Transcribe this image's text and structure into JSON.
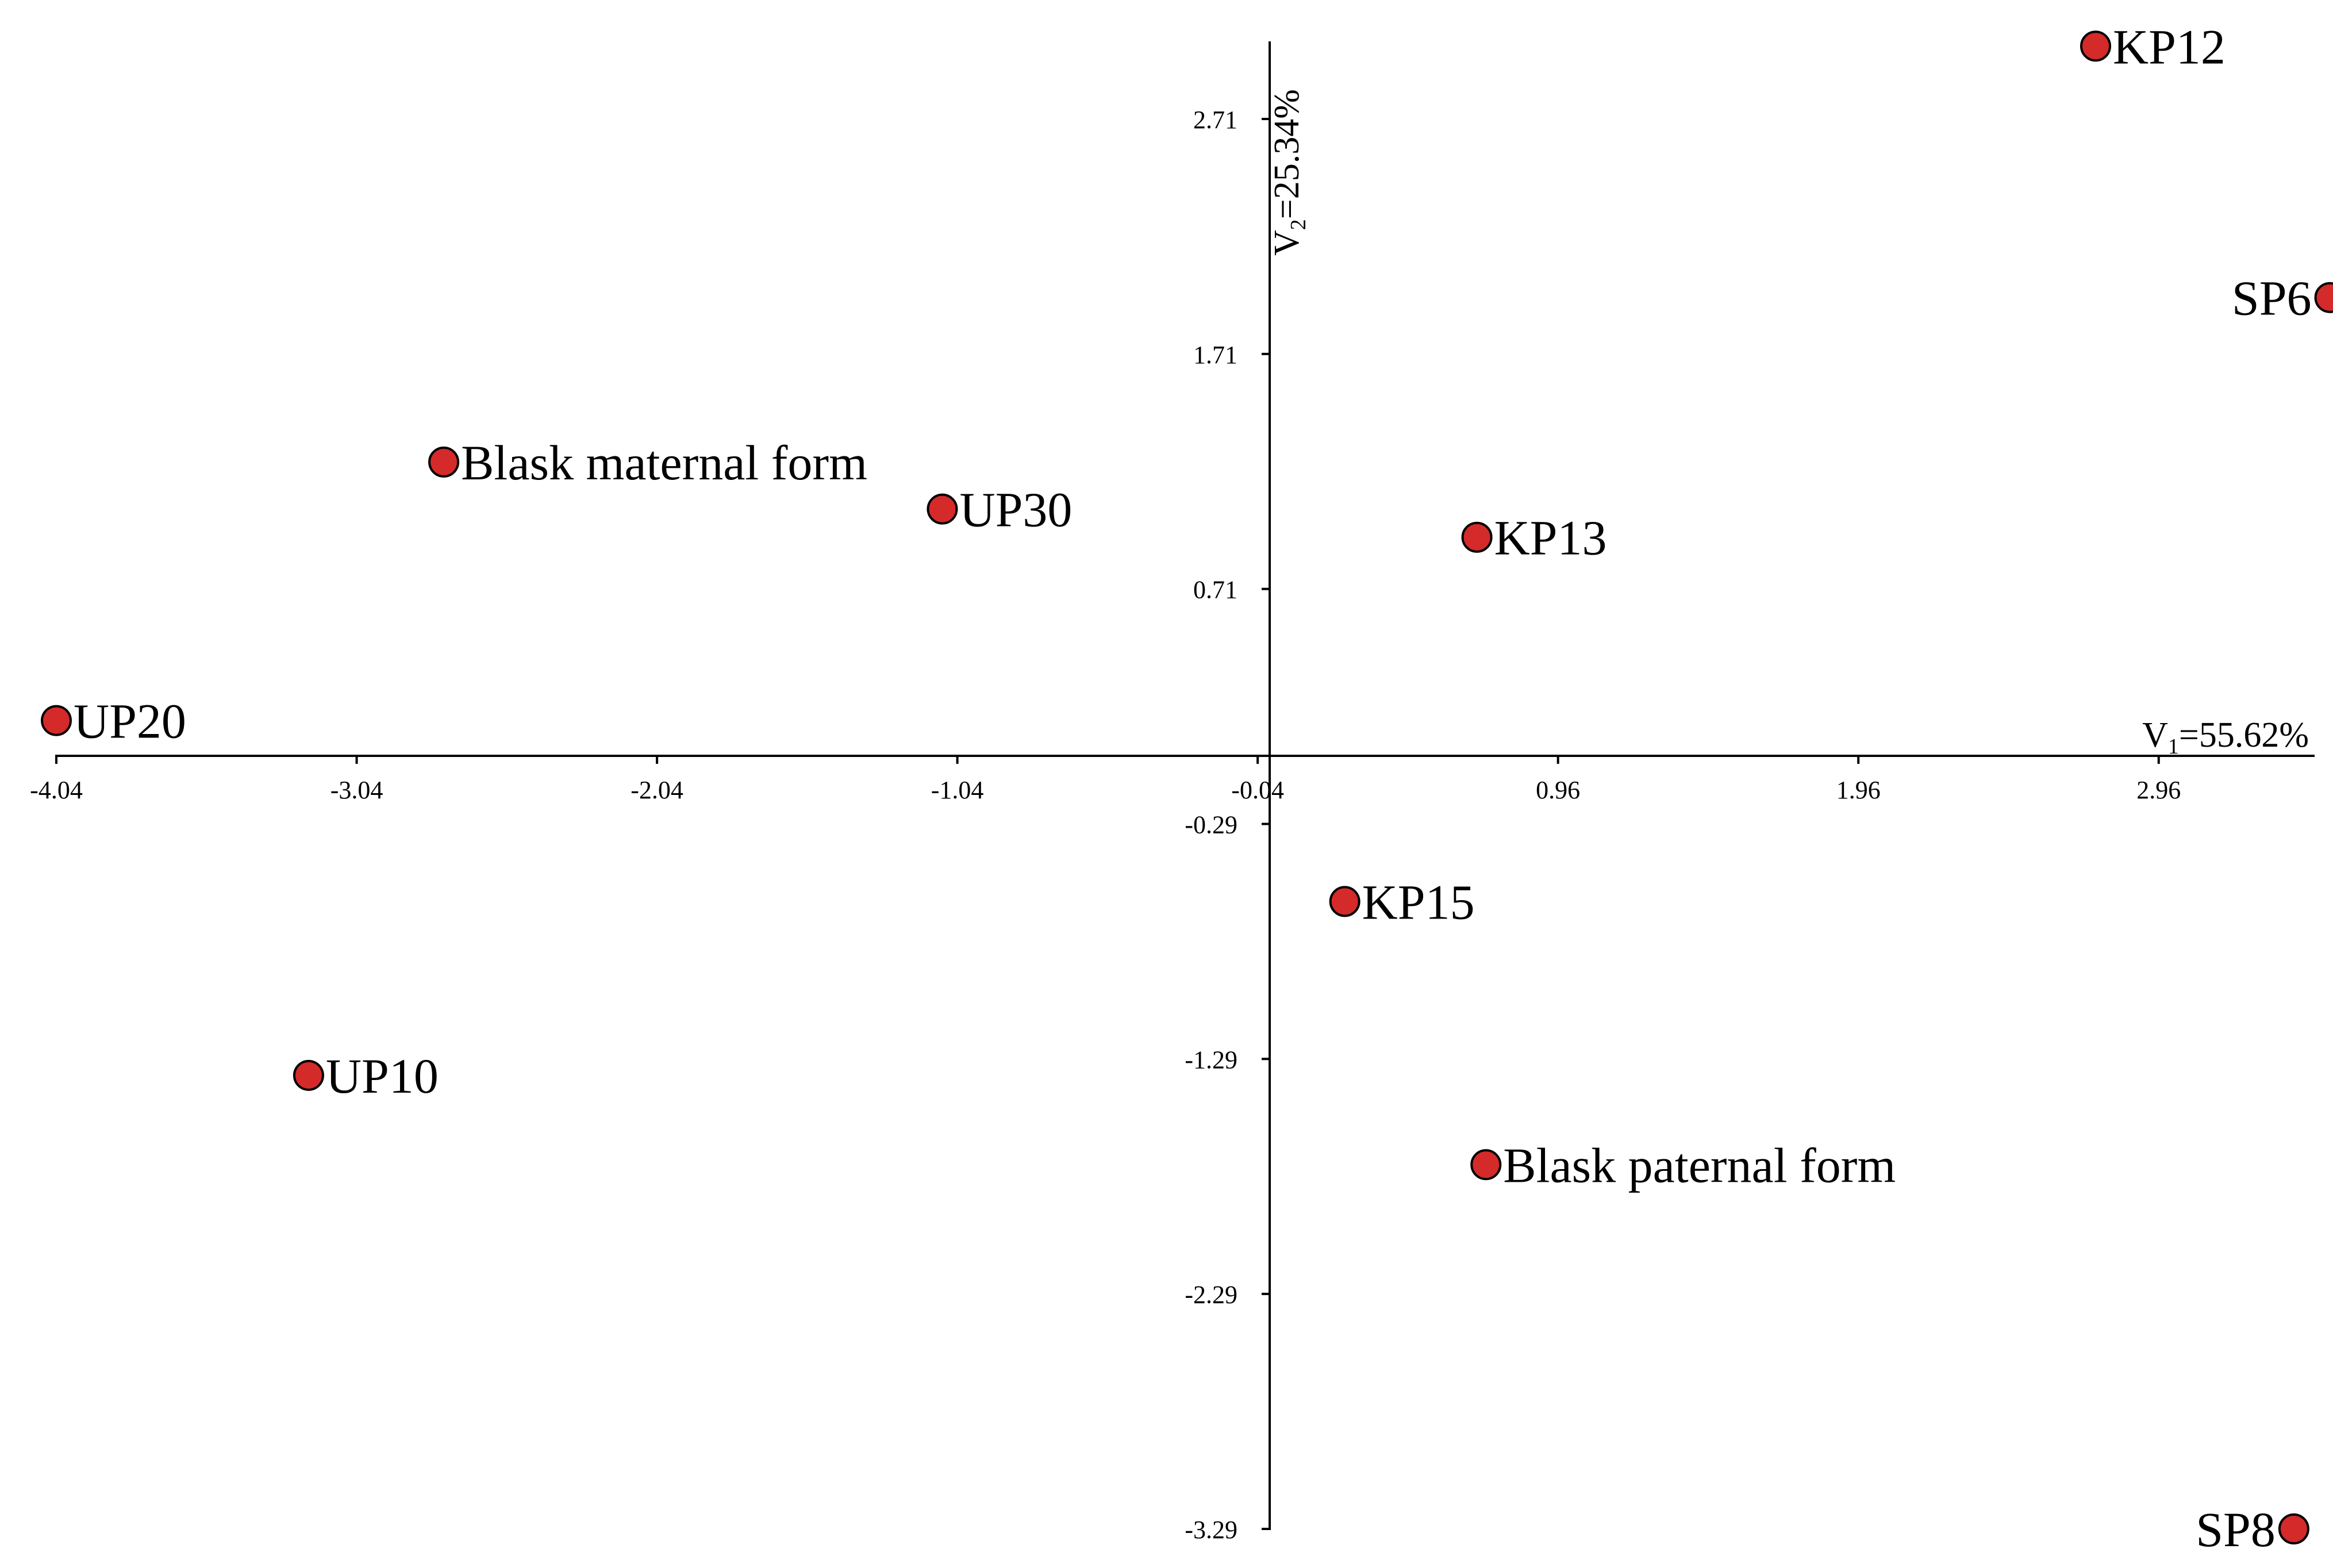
{
  "chart_data": {
    "type": "scatter",
    "title": "",
    "x_axis": {
      "label_main": "V",
      "label_sub": "1",
      "label_tail": "=55.62%",
      "ticks": [
        -4.04,
        -3.04,
        -2.04,
        -1.04,
        -0.04,
        0.96,
        1.96,
        2.96
      ],
      "tick_labels": [
        "-4.04",
        "-3.04",
        "-2.04",
        "-1.04",
        "-0.04",
        "0.96",
        "1.96",
        "2.96"
      ],
      "range": [
        -4.04,
        3.46
      ]
    },
    "y_axis": {
      "label_main": "V",
      "label_sub": "2",
      "label_tail": "=25.34%",
      "ticks": [
        2.71,
        1.71,
        0.71,
        -0.29,
        -1.29,
        -2.29,
        -3.29
      ],
      "tick_labels": [
        "2.71",
        "1.71",
        "0.71",
        "-0.29",
        "-1.29",
        "-2.29",
        "-3.29"
      ],
      "range": [
        -3.29,
        3.02
      ]
    },
    "points": [
      {
        "label": "KP12",
        "x": 2.75,
        "y": 3.02,
        "label_side": "right"
      },
      {
        "label": "SP6",
        "x": 3.53,
        "y": 1.95,
        "label_side": "left"
      },
      {
        "label": "Blask maternal form",
        "x": -2.75,
        "y": 1.25,
        "label_side": "right"
      },
      {
        "label": "UP30",
        "x": -1.09,
        "y": 1.05,
        "label_side": "right"
      },
      {
        "label": "KP13",
        "x": 0.69,
        "y": 0.93,
        "label_side": "right"
      },
      {
        "label": "UP20",
        "x": -4.04,
        "y": 0.15,
        "label_side": "right"
      },
      {
        "label": "KP15",
        "x": 0.25,
        "y": -0.62,
        "label_side": "right"
      },
      {
        "label": "UP10",
        "x": -3.2,
        "y": -1.36,
        "label_side": "right"
      },
      {
        "label": "Blask paternal form",
        "x": 0.72,
        "y": -1.74,
        "label_side": "right"
      },
      {
        "label": "SP8",
        "x": 3.41,
        "y": -3.29,
        "label_side": "left"
      }
    ],
    "colors": {
      "point_fill": "#d42a2a",
      "point_stroke": "#000000",
      "axis": "#000000"
    },
    "grid": false,
    "legend": "none"
  }
}
